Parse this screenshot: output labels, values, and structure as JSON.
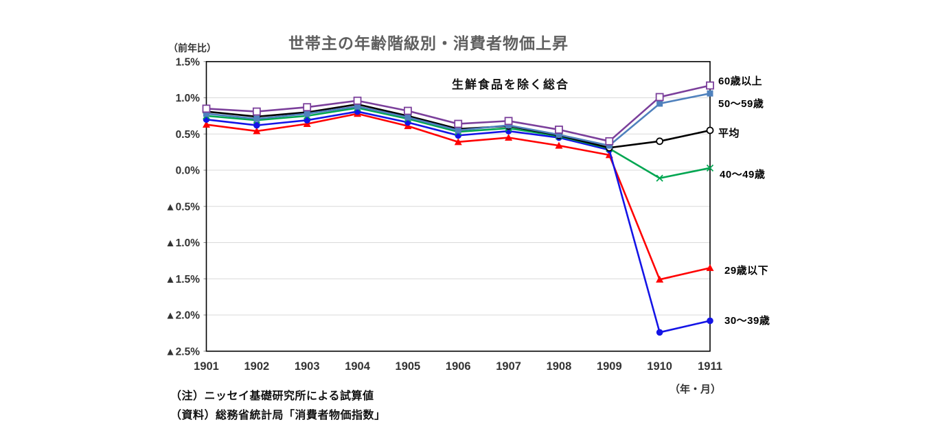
{
  "header": {
    "title": "世帯主の年齢階級別・消費者物価上昇",
    "y_axis_unit_label": "（前年比）",
    "x_axis_unit_label": "（年・月）"
  },
  "notes": [
    "（注）ニッセイ基礎研究所による試算値",
    "（資料）総務省統計局「消費者物価指数」"
  ],
  "chart_data": {
    "type": "line",
    "title": "世帯主の年齢階級別・消費者物価上昇",
    "annotation": "生鮮食品を除く総合",
    "x_unit_label": "（年・月）",
    "y_unit_label": "（前年比）",
    "categories": [
      "1901",
      "1902",
      "1903",
      "1904",
      "1905",
      "1906",
      "1907",
      "1908",
      "1909",
      "1910",
      "1911"
    ],
    "ylim": [
      -2.5,
      1.5
    ],
    "ytick_step": 0.5,
    "ytick_labels": [
      "1.5%",
      "1.0%",
      "0.5%",
      "0.0%",
      "▲0.5%",
      "▲1.0%",
      "▲1.5%",
      "▲2.0%",
      "▲2.5%"
    ],
    "grid": true,
    "legend_position": "right-of-lines",
    "colors": {
      "age_under29": "#FF0000",
      "age_30_39": "#1414E6",
      "age_40_49": "#00A651",
      "average": "#000000",
      "age_50_59": "#4F81BD",
      "age_over60": "#7B3F9B",
      "gridline": "#d9d9d9",
      "axis": "#000000"
    },
    "series": [
      {
        "name": "29歳以下",
        "color": "#FF0000",
        "marker": "triangle",
        "values": [
          0.63,
          0.54,
          0.64,
          0.78,
          0.61,
          0.39,
          0.45,
          0.34,
          0.21,
          -1.51,
          -1.35
        ]
      },
      {
        "name": "30〜39歳",
        "color": "#1414E6",
        "marker": "circle",
        "values": [
          0.7,
          0.62,
          0.69,
          0.81,
          0.66,
          0.48,
          0.54,
          0.45,
          0.28,
          -2.24,
          -2.08
        ]
      },
      {
        "name": "40〜49歳",
        "color": "#00A651",
        "marker": "x",
        "values": [
          0.75,
          0.69,
          0.75,
          0.86,
          0.71,
          0.53,
          0.58,
          0.47,
          0.3,
          -0.11,
          0.03
        ]
      },
      {
        "name": "平均",
        "color": "#000000",
        "marker": "open-circle",
        "values": [
          0.81,
          0.74,
          0.8,
          0.91,
          0.75,
          0.57,
          0.61,
          0.48,
          0.31,
          0.4,
          0.55
        ]
      },
      {
        "name": "50〜59歳",
        "color": "#4F81BD",
        "marker": "filled-square",
        "values": [
          0.78,
          0.71,
          0.78,
          0.88,
          0.73,
          0.55,
          0.62,
          0.49,
          0.34,
          0.92,
          1.06
        ]
      },
      {
        "name": "60歳以上",
        "color": "#7B3F9B",
        "marker": "open-square",
        "values": [
          0.85,
          0.81,
          0.87,
          0.96,
          0.82,
          0.64,
          0.68,
          0.56,
          0.4,
          1.01,
          1.17
        ]
      }
    ]
  }
}
